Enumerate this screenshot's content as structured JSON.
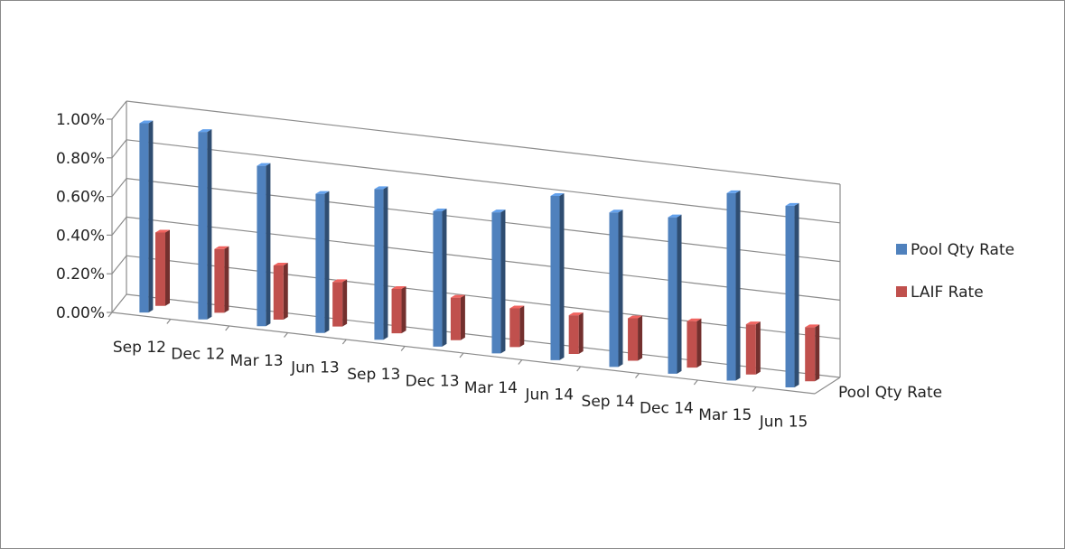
{
  "chart_data": {
    "type": "bar",
    "categories": [
      "Sep 12",
      "Dec 12",
      "Mar 13",
      "Jun 13",
      "Sep 13",
      "Dec 13",
      "Mar 14",
      "Jun 14",
      "Sep 14",
      "Dec 14",
      "Mar 15",
      "Jun 15"
    ],
    "series": [
      {
        "name": "Pool Qty Rate",
        "values": [
          0.98,
          0.97,
          0.83,
          0.72,
          0.78,
          0.7,
          0.73,
          0.85,
          0.8,
          0.81,
          0.97,
          0.94
        ],
        "color": "#4f81bd"
      },
      {
        "name": "LAIF Rate",
        "values": [
          0.38,
          0.33,
          0.28,
          0.23,
          0.23,
          0.22,
          0.2,
          0.2,
          0.22,
          0.24,
          0.26,
          0.28
        ],
        "color": "#c0504d"
      }
    ],
    "depth_axis_label": "Pool Qty Rate",
    "y_ticks": [
      "0.00%",
      "0.20%",
      "0.40%",
      "0.60%",
      "0.80%",
      "1.00%"
    ],
    "ylim": [
      0,
      1.0
    ],
    "grid": true,
    "legend_position": "right"
  }
}
